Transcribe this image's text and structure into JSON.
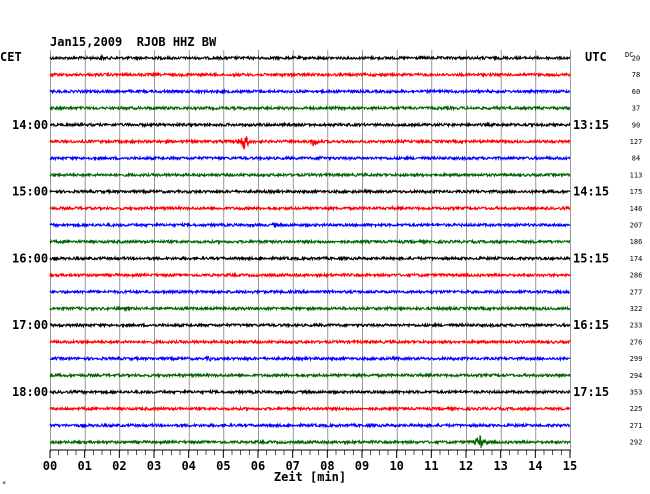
{
  "chart_data": {
    "type": "line",
    "title": "Jan15,2009  RJOB HHZ BW",
    "xlabel": "Zeit [min]",
    "xlim": [
      0,
      15
    ],
    "x_ticks": [
      "00",
      "01",
      "02",
      "03",
      "04",
      "05",
      "06",
      "07",
      "08",
      "09",
      "10",
      "11",
      "12",
      "13",
      "14",
      "15"
    ],
    "left_zone": "CET",
    "right_zone": "UTC",
    "dc_label": "DC",
    "left_hour_labels": [
      "14:00",
      "15:00",
      "16:00",
      "17:00",
      "18:00"
    ],
    "right_hour_labels": [
      "13:15",
      "14:15",
      "15:15",
      "16:15",
      "17:15"
    ],
    "trace_colors": [
      "#000000",
      "#ff0000",
      "#0000ff",
      "#006400"
    ],
    "dc_offsets": [
      20,
      78,
      60,
      37,
      90,
      127,
      84,
      113,
      175,
      146,
      207,
      186,
      174,
      286,
      277,
      322,
      233,
      276,
      299,
      294,
      353,
      225,
      271,
      292
    ],
    "events": [
      {
        "trace": 0,
        "minute": 1.5,
        "amplitude": 3
      },
      {
        "trace": 5,
        "minute": 5.6,
        "amplitude": 9
      },
      {
        "trace": 5,
        "minute": 7.6,
        "amplitude": 5
      },
      {
        "trace": 6,
        "minute": 7.8,
        "amplitude": 3
      },
      {
        "trace": 10,
        "minute": 6.5,
        "amplitude": 3
      },
      {
        "trace": 18,
        "minute": 4.6,
        "amplitude": 3
      },
      {
        "trace": 18,
        "minute": 5.7,
        "amplitude": 2
      },
      {
        "trace": 23,
        "minute": 12.4,
        "amplitude": 8
      }
    ],
    "corner_mark": "*"
  }
}
